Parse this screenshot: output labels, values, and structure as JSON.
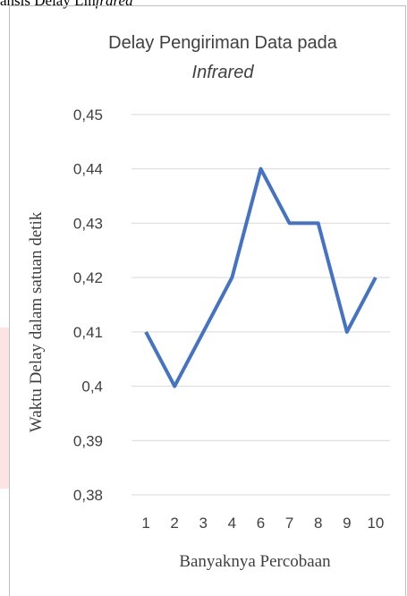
{
  "page": {
    "top_text_prefix": "ansis Delay Lin",
    "top_text_italic": "frared"
  },
  "chart_data": {
    "type": "line",
    "title_line1": "Delay Pengiriman Data pada",
    "title_line2": "Infrared",
    "xlabel": "Banyaknya Percobaan",
    "ylabel": "Waktu Delay dalam satuan detik",
    "categories": [
      "1",
      "2",
      "3",
      "4",
      "6",
      "7",
      "8",
      "9",
      "10"
    ],
    "series": [
      {
        "values": [
          0.41,
          0.4,
          0.41,
          0.42,
          0.44,
          0.43,
          0.43,
          0.41,
          0.42
        ]
      }
    ],
    "ylim": [
      0.38,
      0.45
    ],
    "yticks": [
      0.45,
      0.44,
      0.43,
      0.42,
      0.41,
      0.4,
      0.39,
      0.38
    ],
    "ytick_labels": [
      "0,45",
      "0,44",
      "0,43",
      "0,42",
      "0,41",
      "0,4",
      "0,39",
      "0,38"
    ],
    "line_color": "#4472c4",
    "grid": true
  }
}
